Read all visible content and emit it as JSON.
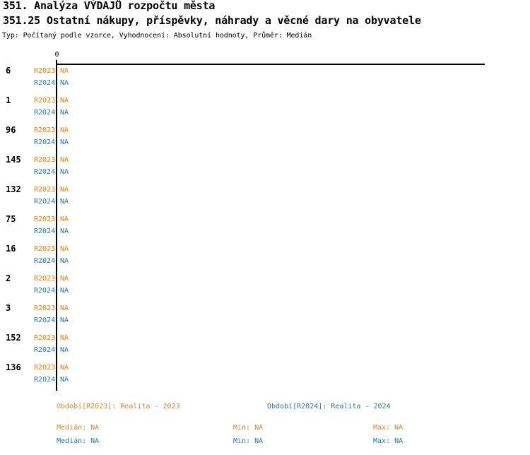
{
  "header": {
    "title": "351. Analýza VÝDAJŮ rozpočtu města",
    "subtitle": "351.25 Ostatní nákupy, příspěvky, náhrady a věcné dary na obyvatele",
    "meta": "Typ: Počítaný podle vzorce, Vyhodnocení: Absolutní hodnoty, Průměr: Medián"
  },
  "axis": {
    "zero_label": "0"
  },
  "series": {
    "r2023": {
      "label": "R2023"
    },
    "r2024": {
      "label": "R2024"
    }
  },
  "rows": [
    {
      "label": "6",
      "r2023": "NA",
      "r2024": "NA"
    },
    {
      "label": "1",
      "r2023": "NA",
      "r2024": "NA"
    },
    {
      "label": "96",
      "r2023": "NA",
      "r2024": "NA"
    },
    {
      "label": "145",
      "r2023": "NA",
      "r2024": "NA"
    },
    {
      "label": "132",
      "r2023": "NA",
      "r2024": "NA"
    },
    {
      "label": "75",
      "r2023": "NA",
      "r2024": "NA"
    },
    {
      "label": "16",
      "r2023": "NA",
      "r2024": "NA"
    },
    {
      "label": "2",
      "r2023": "NA",
      "r2024": "NA"
    },
    {
      "label": "3",
      "r2023": "NA",
      "r2024": "NA"
    },
    {
      "label": "152",
      "r2023": "NA",
      "r2024": "NA"
    },
    {
      "label": "136",
      "r2023": "NA",
      "r2024": "NA"
    }
  ],
  "footer": {
    "period_r2023": "Období[R2023]: Realita - 2023",
    "period_r2024": "Období[R2024]: Realita - 2024",
    "r2023": {
      "median": "Medián: NA",
      "min": "Min: NA",
      "max": "Max: NA"
    },
    "r2024": {
      "median": "Medián: NA",
      "min": "Min: NA",
      "max": "Max: NA"
    }
  },
  "colors": {
    "r2023_orange": "#e8801e",
    "r2024_blue": "#1f77b4",
    "axis_black": "#000000",
    "background": "#ffffff"
  },
  "chart_data": {
    "type": "bar",
    "orientation": "horizontal",
    "title": "351. Analýza VÝDAJŮ rozpočtu města",
    "subtitle": "351.25 Ostatní nákupy, příspěvky, náhrady a věcné dary na obyvatele",
    "note": "Typ: Počítaný podle vzorce, Vyhodnocení: Absolutní hodnoty, Průměr: Medián",
    "categories": [
      "6",
      "1",
      "96",
      "145",
      "132",
      "75",
      "16",
      "2",
      "3",
      "152",
      "136"
    ],
    "series": [
      {
        "name": "R2023",
        "period": "Realita - 2023",
        "values": [
          "NA",
          "NA",
          "NA",
          "NA",
          "NA",
          "NA",
          "NA",
          "NA",
          "NA",
          "NA",
          "NA"
        ],
        "median": "NA",
        "min": "NA",
        "max": "NA",
        "color": "#e8801e"
      },
      {
        "name": "R2024",
        "period": "Realita - 2024",
        "values": [
          "NA",
          "NA",
          "NA",
          "NA",
          "NA",
          "NA",
          "NA",
          "NA",
          "NA",
          "NA",
          "NA"
        ],
        "median": "NA",
        "min": "NA",
        "max": "NA",
        "color": "#1f77b4"
      }
    ],
    "x_axis": {
      "ticks": [
        "0"
      ],
      "label": ""
    },
    "y_axis": {
      "label": ""
    },
    "grid": false,
    "legend_position": "bottom"
  }
}
